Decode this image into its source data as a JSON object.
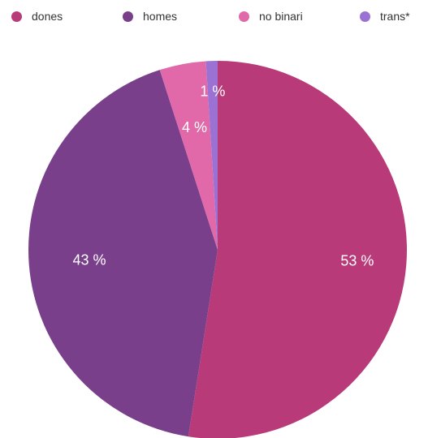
{
  "chart_data": {
    "type": "pie",
    "title": "",
    "legend_position": "top",
    "slices": [
      {
        "label": "dones",
        "value": 53,
        "display": "53 %",
        "color": "#b93a78"
      },
      {
        "label": "homes",
        "value": 43,
        "display": "43 %",
        "color": "#7a3f8b"
      },
      {
        "label": "no binari",
        "value": 4,
        "display": "4 %",
        "color": "#e169a9"
      },
      {
        "label": "trans*",
        "value": 1,
        "display": "1 %",
        "color": "#9b72d4"
      }
    ]
  }
}
